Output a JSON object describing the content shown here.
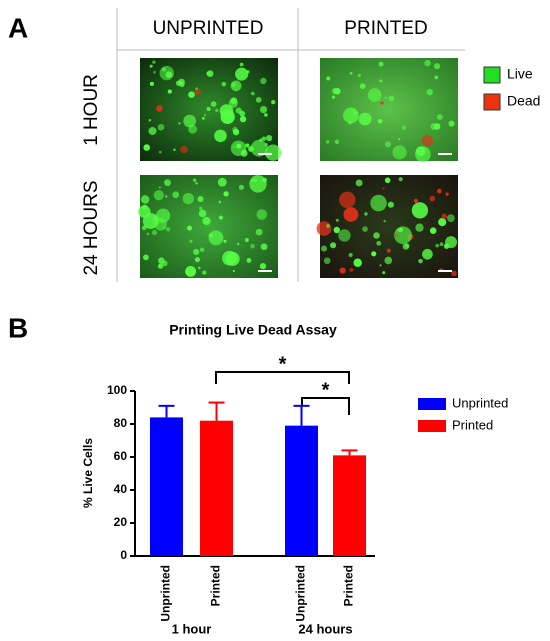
{
  "panel_a": {
    "panel_label": "A",
    "columns": [
      "UNPRINTED",
      "PRINTED"
    ],
    "rows": [
      "1 HOUR",
      "24 HOURS"
    ],
    "legend": [
      "Live",
      "Dead"
    ]
  },
  "chart_data": {
    "type": "bar",
    "panel_label": "B",
    "title": "Printing Live Dead Assay",
    "ylabel": "% Live Cells",
    "categories": [
      "1 hour",
      "24 hours"
    ],
    "series": [
      {
        "name": "Unprinted",
        "color": "#0000ff",
        "values": [
          84,
          79
        ],
        "errors": [
          7,
          12
        ]
      },
      {
        "name": "Printed",
        "color": "#ff0000",
        "values": [
          82,
          61
        ],
        "errors": [
          11,
          3
        ]
      }
    ],
    "ylim": [
      0,
      100
    ],
    "yticks": [
      0,
      20,
      40,
      60,
      80,
      100
    ],
    "annotations": [
      {
        "text": "*"
      },
      {
        "text": "*"
      }
    ]
  }
}
